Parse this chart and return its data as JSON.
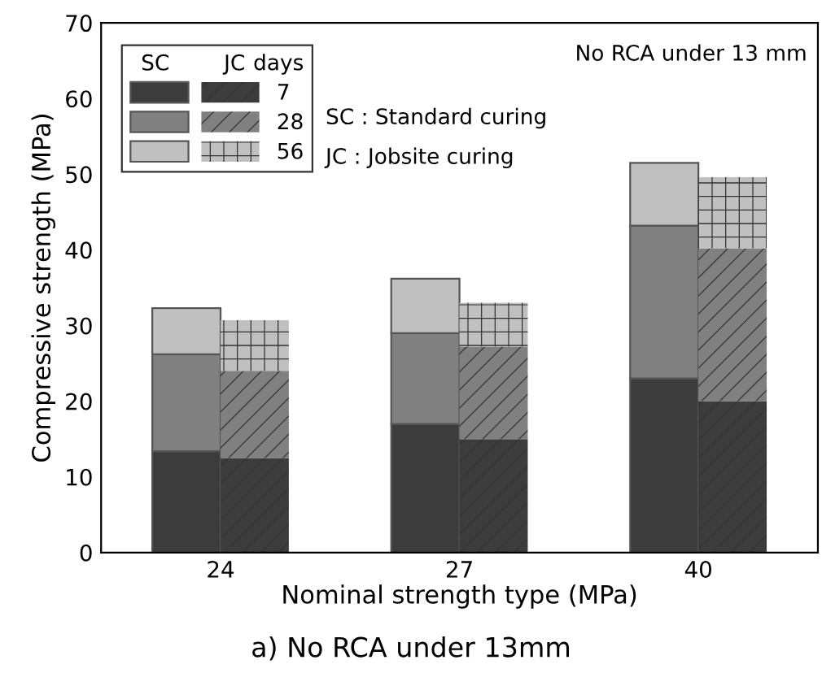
{
  "chart_data": {
    "type": "bar",
    "stacked": true,
    "xlabel": "Nominal strength type (MPa)",
    "ylabel": "Compressive strength (MPa)",
    "categories": [
      null,
      "24",
      null,
      null,
      null,
      null,
      null,
      null,
      "27",
      null,
      null,
      null,
      null,
      null,
      null,
      "40",
      null,
      null,
      null,
      null,
      null
    ],
    "series": [
      {
        "name": "7",
        "color": "#3c3c3c",
        "values": [
          13.4,
          null,
          12.5,
          null,
          null,
          null,
          null,
          17,
          null,
          15,
          null,
          null,
          null,
          null,
          23,
          null,
          20,
          null,
          null,
          null,
          null
        ]
      },
      {
        "name": "28",
        "color": "#808080",
        "values": [
          12.8,
          null,
          11.5,
          null,
          null,
          null,
          null,
          12,
          null,
          12.2,
          null,
          null,
          null,
          null,
          20.2,
          null,
          20.2,
          null,
          null,
          null,
          null
        ]
      },
      {
        "name": "56",
        "color": "#c0c0c0",
        "values": [
          6.1,
          null,
          6.7,
          null,
          null,
          null,
          null,
          7.2,
          null,
          5.8,
          null,
          null,
          null,
          null,
          8.3,
          null,
          9.4,
          null,
          null,
          null,
          null
        ]
      }
    ],
    "legend_title": "days",
    "legend": "top left",
    "grid": false,
    "ylim": [
      0,
      70
    ],
    "yticks": [
      0,
      10,
      20,
      30,
      40,
      50,
      60,
      70
    ],
    "annotations": [
      "No RCA under 13 mm",
      "SC : Standard curing",
      "JC : Jobsite curing",
      "a) No RCA under 13mm",
      "SC",
      "JC"
    ]
  }
}
